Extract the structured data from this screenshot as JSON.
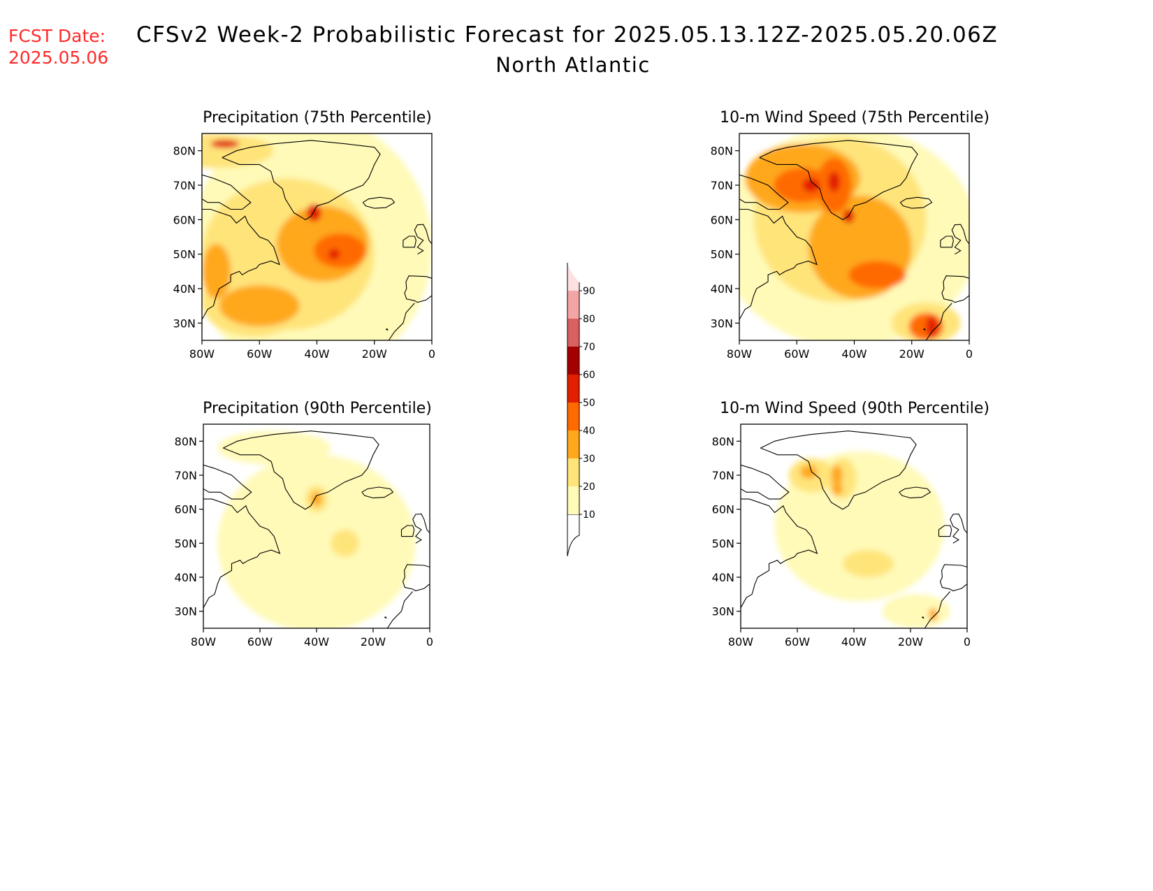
{
  "header": {
    "fcst_label": "FCST Date:",
    "fcst_date": "2025.05.06",
    "title": "CFSv2 Week-2 Probabilistic Forecast for 2025.05.13.12Z-2025.05.20.06Z",
    "subtitle": "North Atlantic",
    "fcst_color": "#ff2a2a"
  },
  "axes": {
    "lon_labels": [
      "80W",
      "60W",
      "40W",
      "20W",
      "0"
    ],
    "lat_labels": [
      "80N",
      "70N",
      "60N",
      "50N",
      "40N",
      "30N"
    ],
    "lon_range": [
      -80,
      0
    ],
    "lat_range": [
      25,
      85
    ]
  },
  "colorbar": {
    "levels": [
      10,
      20,
      30,
      40,
      50,
      60,
      70,
      80,
      90
    ],
    "labels": [
      "10",
      "20",
      "30",
      "40",
      "50",
      "60",
      "70",
      "80",
      "90"
    ],
    "colors": [
      "#fffab8",
      "#ffe47a",
      "#ffa81c",
      "#ff6a00",
      "#e21f00",
      "#a50000",
      "#d86060",
      "#f3a4a4",
      "#fde0e0"
    ]
  },
  "panels": [
    {
      "id": "precip-75",
      "title": "Precipitation (75th Percentile)",
      "bands": [
        {
          "level": 10,
          "blobs": [
            [
              -42,
              52,
              42,
              38
            ]
          ]
        },
        {
          "level": 20,
          "blobs": [
            [
              -50,
              50,
              30,
              22
            ],
            [
              -62,
              36,
              18,
              10
            ],
            [
              -75,
              80,
              20,
              5
            ]
          ]
        },
        {
          "level": 30,
          "blobs": [
            [
              -38,
              53,
              16,
              11
            ],
            [
              -60,
              35,
              14,
              6
            ],
            [
              -75,
              45,
              5,
              8
            ]
          ]
        },
        {
          "level": 40,
          "blobs": [
            [
              -32,
              51,
              9,
              5
            ]
          ]
        },
        {
          "level": 50,
          "blobs": [
            [
              -41,
              62,
              2.5,
              2.5
            ],
            [
              -34,
              50,
              2,
              1.5
            ],
            [
              -72,
              82,
              5,
              1.2
            ]
          ]
        }
      ]
    },
    {
      "id": "wind-75",
      "title": "10-m Wind Speed (75th Percentile)",
      "bands": [
        {
          "level": 10,
          "blobs": [
            [
              -42,
              55,
              45,
              32
            ]
          ]
        },
        {
          "level": 20,
          "blobs": [
            [
              -45,
              60,
              30,
              24
            ],
            [
              -15,
              30,
              12,
              6
            ]
          ]
        },
        {
          "level": 30,
          "blobs": [
            [
              -38,
              52,
              18,
              15
            ],
            [
              -58,
              72,
              20,
              10
            ]
          ]
        },
        {
          "level": 40,
          "blobs": [
            [
              -58,
              70,
              10,
              5
            ],
            [
              -47,
              70,
              6,
              8
            ],
            [
              -32,
              44,
              10,
              4
            ],
            [
              -15,
              29,
              6,
              4
            ]
          ]
        },
        {
          "level": 50,
          "blobs": [
            [
              -55,
              70,
              3,
              2
            ],
            [
              -47,
              71,
              2,
              3
            ],
            [
              -42,
              61,
              2,
              2
            ],
            [
              -13,
              29,
              2,
              3
            ]
          ]
        }
      ]
    },
    {
      "id": "precip-90",
      "title": "Precipitation (90th Percentile)",
      "bands": [
        {
          "level": 10,
          "blobs": [
            [
              -40,
              50,
              35,
              26
            ],
            [
              -55,
              78,
              20,
              5
            ]
          ]
        },
        {
          "level": 20,
          "blobs": [
            [
              -40,
              63,
              4,
              4
            ],
            [
              -30,
              50,
              5,
              4
            ]
          ]
        },
        {
          "level": 30,
          "blobs": [
            [
              -40,
              63,
              2,
              2
            ]
          ]
        }
      ]
    },
    {
      "id": "wind-90",
      "title": "10-m Wind Speed (90th Percentile)",
      "bands": [
        {
          "level": 10,
          "blobs": [
            [
              -38,
              55,
              30,
              22
            ],
            [
              -18,
              30,
              12,
              5
            ]
          ]
        },
        {
          "level": 20,
          "blobs": [
            [
              -55,
              70,
              8,
              5
            ],
            [
              -44,
              69,
              5,
              6
            ],
            [
              -35,
              44,
              9,
              4
            ]
          ]
        },
        {
          "level": 30,
          "blobs": [
            [
              -56,
              71,
              3,
              2
            ],
            [
              -46,
              70,
              2,
              3
            ],
            [
              -46,
              66,
              2,
              2
            ],
            [
              -12,
              29,
              1.5,
              2
            ]
          ]
        }
      ]
    }
  ]
}
